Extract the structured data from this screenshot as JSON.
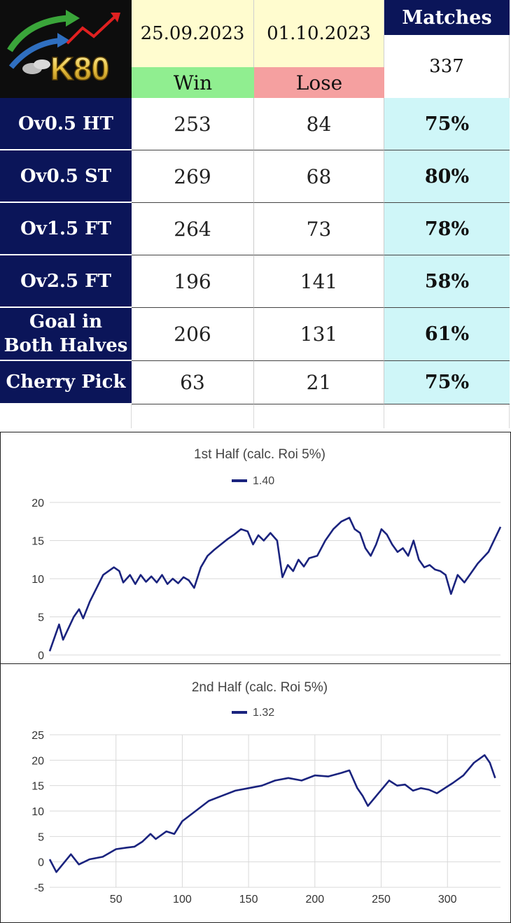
{
  "table": {
    "logo_text": "K80",
    "date_from": "25.09.2023",
    "date_to": "01.10.2023",
    "win_label": "Win",
    "lose_label": "Lose",
    "matches_label": "Matches",
    "matches_value": "337",
    "rows": [
      {
        "label": "Ov0.5 HT",
        "win": "253",
        "lose": "84",
        "pct": "75%"
      },
      {
        "label": "Ov0.5 ST",
        "win": "269",
        "lose": "68",
        "pct": "80%"
      },
      {
        "label": "Ov1.5 FT",
        "win": "264",
        "lose": "73",
        "pct": "78%"
      },
      {
        "label": "Ov2.5 FT",
        "win": "196",
        "lose": "141",
        "pct": "58%"
      },
      {
        "label": "Goal in\nBoth Halves",
        "win": "206",
        "lose": "131",
        "pct": "61%"
      },
      {
        "label": "Cherry Pick",
        "win": "63",
        "lose": "21",
        "pct": "75%"
      }
    ]
  },
  "colors": {
    "line": "#1a237e",
    "header_navy": "#0b1559"
  },
  "chart_data": [
    {
      "type": "line",
      "title": "1st Half (calc. Roi 5%)",
      "series": [
        {
          "name": "1.40",
          "x": [
            0,
            7,
            10,
            18,
            22,
            25,
            30,
            40,
            48,
            52,
            55,
            60,
            64,
            68,
            72,
            76,
            80,
            84,
            88,
            92,
            96,
            100,
            104,
            108,
            113,
            118,
            123,
            128,
            133,
            138,
            143,
            148,
            152,
            156,
            160,
            165,
            170,
            174,
            178,
            182,
            186,
            190,
            194,
            200,
            206,
            212,
            218,
            224,
            228,
            232,
            236,
            240,
            244,
            248,
            252,
            256,
            260,
            264,
            268,
            272,
            276,
            280,
            284,
            288,
            292,
            296,
            300,
            305,
            310,
            320,
            328,
            337
          ],
          "values": [
            0.5,
            4,
            2,
            5,
            6,
            4.8,
            7,
            10.5,
            11.5,
            11,
            9.5,
            10.5,
            9.3,
            10.5,
            9.6,
            10.3,
            9.5,
            10.5,
            9.3,
            10,
            9.4,
            10.2,
            9.8,
            8.8,
            11.5,
            13,
            13.8,
            14.5,
            15.2,
            15.8,
            16.5,
            16.2,
            14.5,
            15.7,
            15,
            16,
            15,
            10.2,
            11.8,
            11,
            12.5,
            11.6,
            12.7,
            13,
            15,
            16.5,
            17.5,
            18,
            16.5,
            16,
            14,
            13,
            14.5,
            16.5,
            15.8,
            14.5,
            13.5,
            14,
            13,
            15,
            12.5,
            11.5,
            11.8,
            11.2,
            11,
            10.5,
            8,
            10.5,
            9.5,
            12,
            13.5,
            16.8
          ]
        }
      ],
      "xlim": [
        0,
        337
      ],
      "ylim": [
        0,
        20
      ],
      "yticks": [
        0,
        5,
        10,
        15,
        20
      ],
      "grid": true,
      "legend": "top-center"
    },
    {
      "type": "line",
      "title": "2nd Half (calc. Roi 5%)",
      "series": [
        {
          "name": "1.32",
          "x": [
            0,
            5,
            16,
            22,
            30,
            40,
            50,
            58,
            64,
            70,
            76,
            80,
            88,
            94,
            100,
            110,
            120,
            130,
            140,
            150,
            160,
            170,
            180,
            190,
            200,
            210,
            220,
            226,
            232,
            236,
            240,
            248,
            256,
            262,
            268,
            274,
            280,
            286,
            292,
            298,
            304,
            312,
            320,
            328,
            332,
            336
          ],
          "values": [
            0.5,
            -2,
            1.5,
            -0.5,
            0.5,
            1,
            2.5,
            2.8,
            3,
            4,
            5.5,
            4.5,
            6,
            5.5,
            8,
            10,
            12,
            13,
            14,
            14.5,
            15,
            16,
            16.5,
            16,
            17,
            16.8,
            17.5,
            18,
            14.5,
            13,
            11,
            13.5,
            16,
            15,
            15.2,
            14,
            14.5,
            14.2,
            13.5,
            14.5,
            15.5,
            17,
            19.5,
            21,
            19.5,
            16.5
          ]
        }
      ],
      "xlim": [
        0,
        340
      ],
      "ylim": [
        -5,
        25
      ],
      "xticks": [
        50,
        100,
        150,
        200,
        250,
        300
      ],
      "yticks": [
        -5,
        0,
        5,
        10,
        15,
        20,
        25
      ],
      "grid": true,
      "legend": "top-center"
    }
  ]
}
